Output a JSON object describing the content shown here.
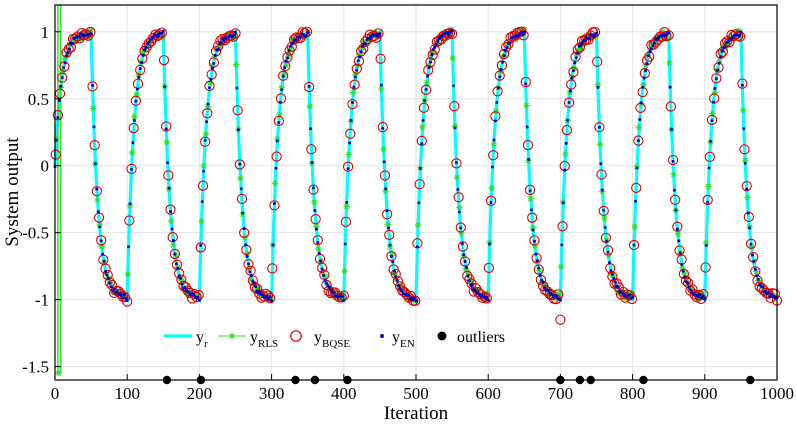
{
  "chart_data": {
    "type": "line",
    "xlabel": "Iteration",
    "ylabel": "System output",
    "xlim": [
      0,
      1000
    ],
    "ylim": [
      -1.6,
      1.2
    ],
    "xticks": [
      "0",
      "100",
      "200",
      "300",
      "400",
      "500",
      "600",
      "700",
      "800",
      "900",
      "1000"
    ],
    "yticks": [
      "1",
      "0.5",
      "0",
      "-0.5",
      "-1",
      "-1.5"
    ],
    "ytick_values": [
      1,
      0.5,
      0,
      -0.5,
      -1,
      -1.5
    ],
    "grid": true,
    "legend_placement": "bottom-center",
    "period": 100,
    "rise_fraction": 0.5,
    "series": [
      {
        "name": "y",
        "subscript": "r",
        "style": "line",
        "color": "#00ffff",
        "peak_values": [
          0.99,
          0.99,
          0.99,
          0.99,
          0.99,
          1.0,
          1.0,
          0.99,
          0.99,
          0.99
        ],
        "trough_values": [
          -0.99,
          -0.99,
          -1.0,
          -0.99,
          -1.0,
          -0.99,
          -0.99,
          -0.99,
          -0.99,
          -0.99
        ]
      },
      {
        "name": "y",
        "subscript": "RLS",
        "style": "star-markers",
        "color": "#33dd33"
      },
      {
        "name": "y",
        "subscript": "BQSE",
        "style": "open-circles",
        "color": "#dd0000"
      },
      {
        "name": "y",
        "subscript": "EN",
        "style": "dots",
        "color": "#0000cc"
      },
      {
        "name": "outliers",
        "subscript": "",
        "style": "filled-circles",
        "color": "#000000",
        "x": [
          155,
          202,
          333,
          360,
          405,
          700,
          727,
          742,
          815,
          963
        ],
        "y": [
          -1.6,
          -1.6,
          -1.6,
          -1.6,
          -1.6,
          -1.6,
          -1.6,
          -1.6,
          -1.6,
          -1.6
        ]
      }
    ],
    "outlier_effects": [
      {
        "x": 700,
        "series": "RLS",
        "value": -1.23
      },
      {
        "x": 700,
        "series": "BQSE",
        "value": -1.15
      },
      {
        "x": 727,
        "series": "RLS",
        "value": 0.69
      },
      {
        "x": 742,
        "series": "RLS",
        "value": 0.83
      },
      {
        "x": 333,
        "series": "RLS",
        "value": 0.73
      },
      {
        "x": 405,
        "series": "RLS",
        "value": -0.27
      },
      {
        "x": 5,
        "series": "RLS",
        "value": -1.55
      }
    ]
  }
}
